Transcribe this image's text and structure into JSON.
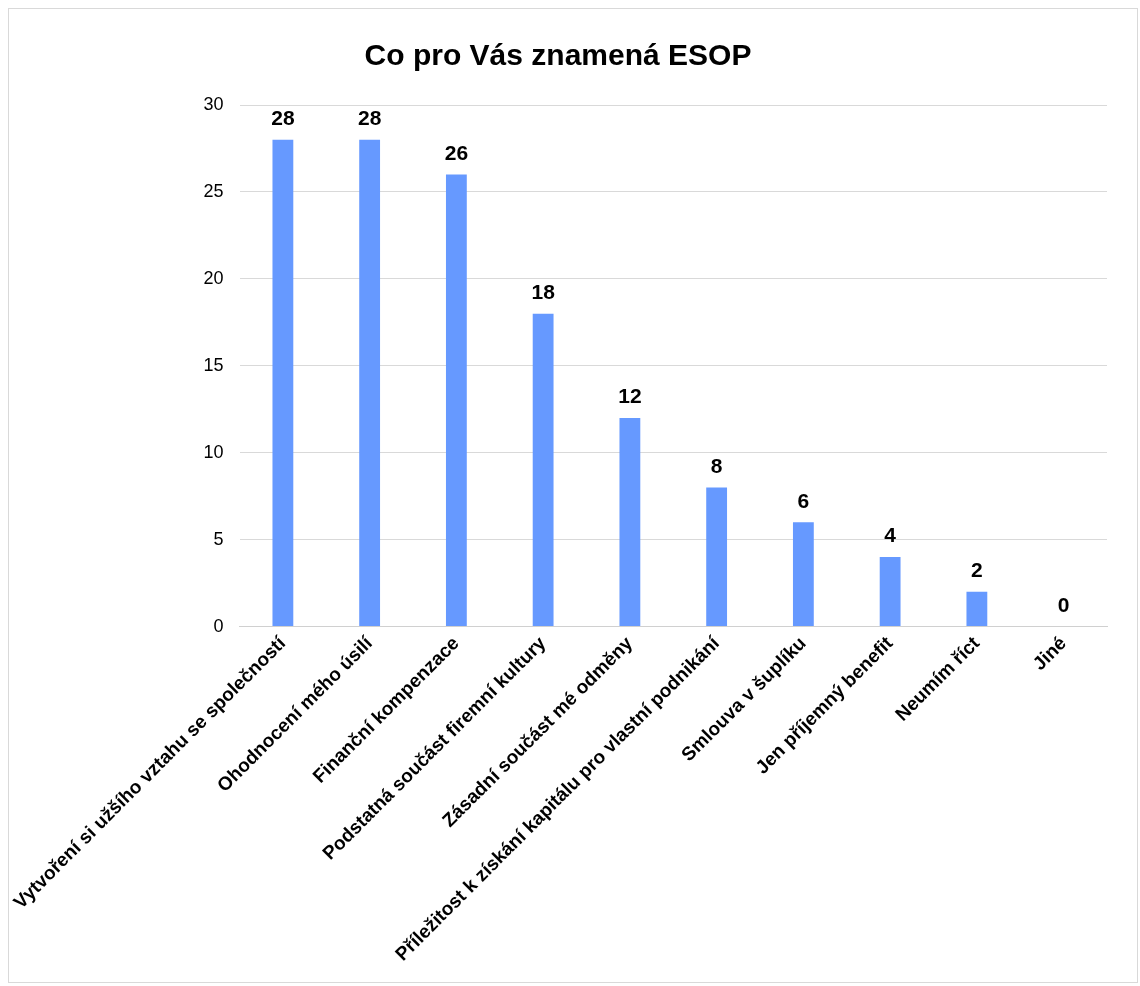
{
  "chart_data": {
    "type": "bar",
    "title": "Co pro Vás znamená ESOP",
    "categories": [
      "Vytvoření si užšího vztahu se společností",
      "Ohodnocení mého úsilí",
      "Finanční kompenzace",
      "Podstatná součást firemní kultury",
      "Zásadní součást mé odměny",
      "Příležitost k získání kapitálu pro vlastní podnikání",
      "Smlouva v šuplíku",
      "Jen příjemný benefit",
      "Neumím říct",
      "Jiné"
    ],
    "values": [
      28,
      28,
      26,
      18,
      12,
      8,
      6,
      4,
      2,
      0
    ],
    "color": "#6699ff",
    "ylim": [
      0,
      30
    ],
    "yticks": [
      0,
      5,
      10,
      15,
      20,
      25,
      30
    ],
    "grid": "y",
    "legend": false,
    "data_labels": true
  }
}
